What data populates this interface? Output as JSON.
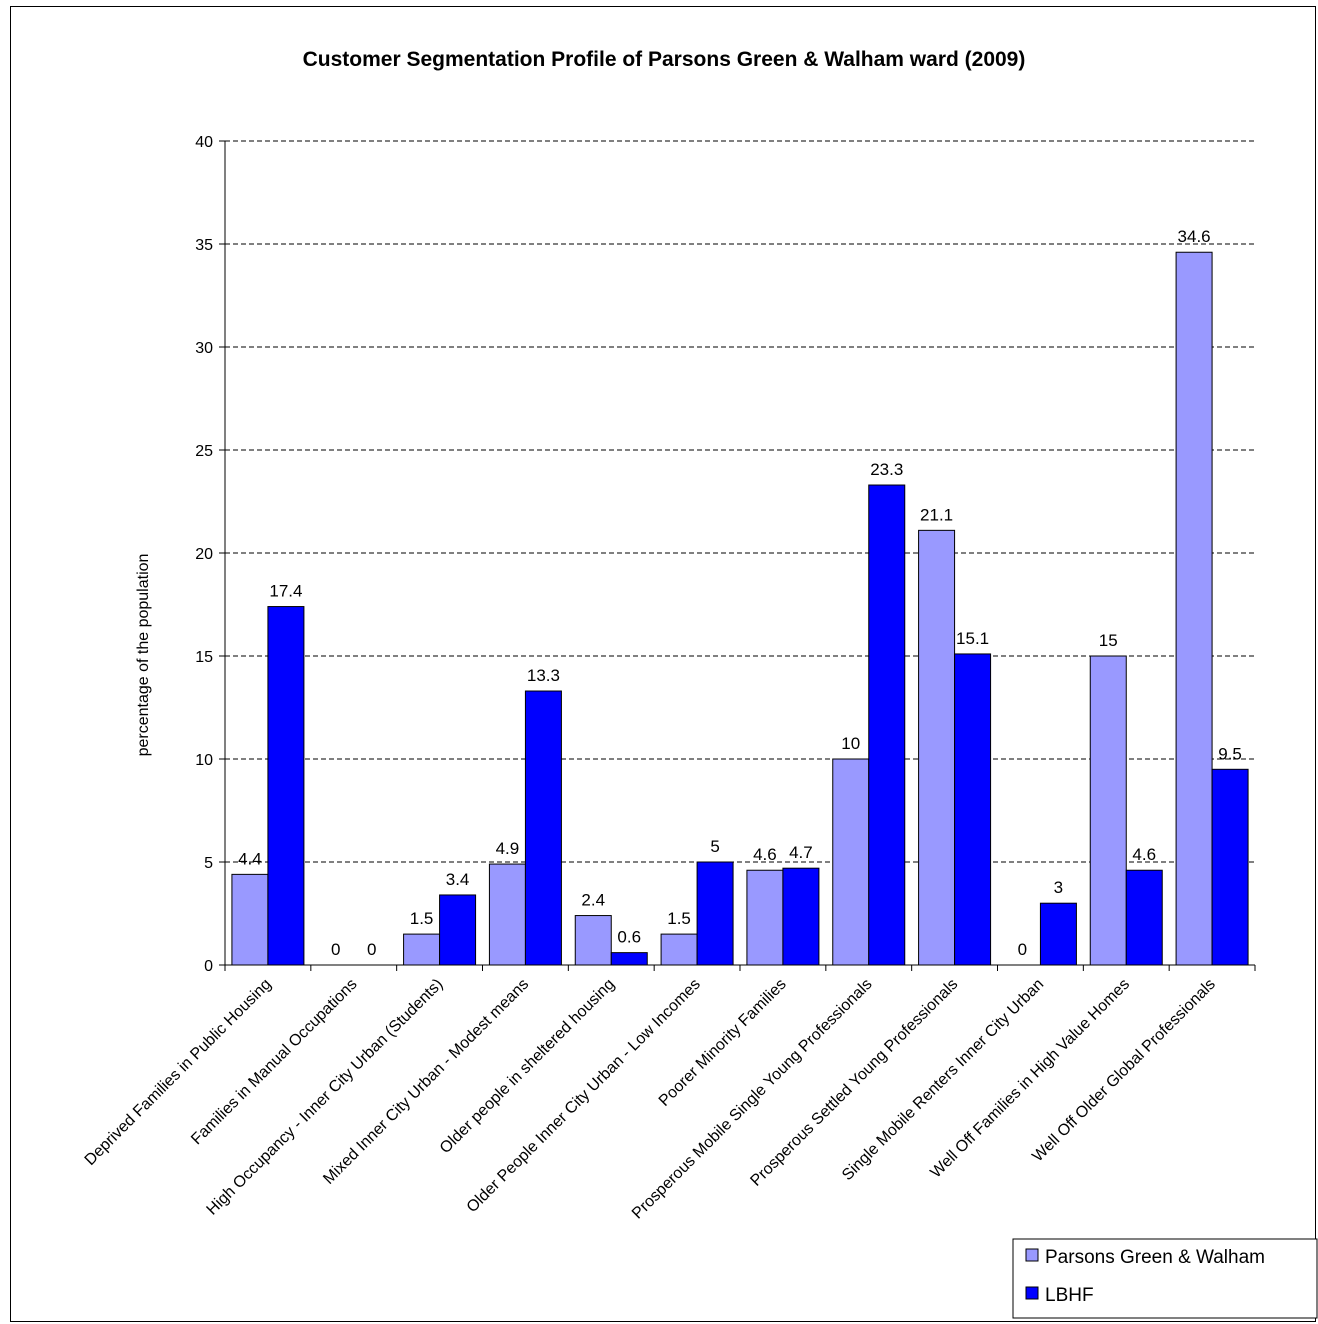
{
  "chart_data": {
    "type": "bar",
    "title": "Customer Segmentation Profile of Parsons Green & Walham ward (2009)",
    "xlabel": "",
    "ylabel": "percentage of the population",
    "ylim": [
      0,
      40
    ],
    "yticks": [
      "0",
      "5",
      "10",
      "15",
      "20",
      "25",
      "30",
      "35",
      "40"
    ],
    "grid": true,
    "legend_position": "bottom-right",
    "categories": [
      "Deprived Families in Public Housing",
      "Families in Manual Occupations",
      "High Occupancy - Inner City Urban (Students)",
      "Mixed Inner City Urban - Modest means",
      "Older people in sheltered housing",
      "Older People Inner City Urban - Low Incomes",
      "Poorer Minority Families",
      "Prosperous Mobile Single Young Professionals",
      "Prosperous Settled Young Professionals",
      "Single Mobile Renters Inner City Urban",
      "Well Off Families in High Value Homes",
      "Well Off Older Global Professionals"
    ],
    "series": [
      {
        "name": "Parsons Green & Walham",
        "color": "#9999ff",
        "values": [
          4.4,
          0,
          1.5,
          4.9,
          2.4,
          1.5,
          4.6,
          10,
          21.1,
          0,
          15,
          34.6
        ],
        "labels": [
          "4.4",
          "0",
          "1.5",
          "4.9",
          "2.4",
          "1.5",
          "4.6",
          "10",
          "21.1",
          "0",
          "15",
          "34.6"
        ]
      },
      {
        "name": "LBHF",
        "color": "#0000ff",
        "values": [
          17.4,
          0,
          3.4,
          13.3,
          0.6,
          5,
          4.7,
          23.3,
          15.1,
          3,
          4.6,
          9.5
        ],
        "labels": [
          "17.4",
          "0",
          "3.4",
          "13.3",
          "0.6",
          "5",
          "4.7",
          "23.3",
          "15.1",
          "3",
          "4.6",
          "9.5"
        ]
      }
    ]
  }
}
